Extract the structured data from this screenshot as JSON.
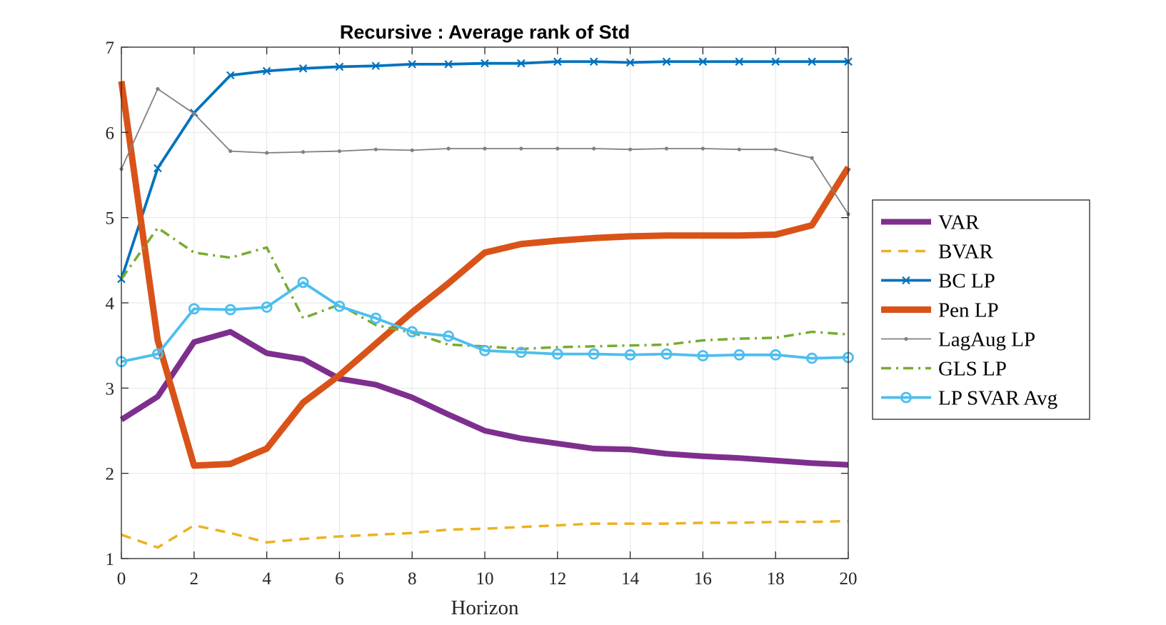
{
  "chart_data": {
    "type": "line",
    "title": "Recursive : Average rank of Std",
    "xlabel": "Horizon",
    "ylabel": "",
    "xlim": [
      0,
      20
    ],
    "ylim": [
      1,
      7
    ],
    "xticks": [
      "0",
      "2",
      "4",
      "6",
      "8",
      "10",
      "12",
      "14",
      "16",
      "18",
      "20"
    ],
    "yticks": [
      "1",
      "2",
      "3",
      "4",
      "5",
      "6",
      "7"
    ],
    "grid": true,
    "legend_position": "right",
    "x": [
      0,
      1,
      2,
      3,
      4,
      5,
      6,
      7,
      8,
      9,
      10,
      11,
      12,
      13,
      14,
      15,
      16,
      17,
      18,
      19,
      20
    ],
    "series": [
      {
        "name": "VAR",
        "color": "#7E2F8E",
        "style": "solid-thick",
        "marker": "none",
        "values": [
          2.63,
          2.9,
          3.54,
          3.66,
          3.41,
          3.34,
          3.11,
          3.04,
          2.89,
          2.69,
          2.5,
          2.41,
          2.35,
          2.29,
          2.28,
          2.23,
          2.2,
          2.18,
          2.15,
          2.12,
          2.1
        ]
      },
      {
        "name": "BVAR",
        "color": "#EDB120",
        "style": "dashed",
        "marker": "none",
        "values": [
          1.28,
          1.13,
          1.39,
          1.3,
          1.19,
          1.23,
          1.26,
          1.28,
          1.3,
          1.34,
          1.35,
          1.37,
          1.39,
          1.41,
          1.41,
          1.41,
          1.42,
          1.42,
          1.43,
          1.43,
          1.44
        ]
      },
      {
        "name": "BC LP",
        "color": "#0072BD",
        "style": "solid",
        "marker": "x",
        "values": [
          4.28,
          5.58,
          6.23,
          6.67,
          6.72,
          6.75,
          6.77,
          6.78,
          6.8,
          6.8,
          6.81,
          6.81,
          6.83,
          6.83,
          6.82,
          6.83,
          6.83,
          6.83,
          6.83,
          6.83,
          6.83
        ]
      },
      {
        "name": "Pen LP",
        "color": "#D95319",
        "style": "solid-heavy",
        "marker": "none",
        "values": [
          6.6,
          3.56,
          2.09,
          2.11,
          2.29,
          2.83,
          3.15,
          3.52,
          3.89,
          4.23,
          4.59,
          4.69,
          4.73,
          4.76,
          4.78,
          4.79,
          4.79,
          4.79,
          4.8,
          4.91,
          5.59
        ]
      },
      {
        "name": "LagAug LP",
        "color": "#808080",
        "style": "solid-thin",
        "marker": "dot",
        "values": [
          5.57,
          6.51,
          6.22,
          5.78,
          5.76,
          5.77,
          5.78,
          5.8,
          5.79,
          5.81,
          5.81,
          5.81,
          5.81,
          5.81,
          5.8,
          5.81,
          5.81,
          5.8,
          5.8,
          5.7,
          5.04
        ]
      },
      {
        "name": "GLS LP",
        "color": "#77AC30",
        "style": "dashdot",
        "marker": "none",
        "values": [
          4.28,
          4.88,
          4.59,
          4.53,
          4.65,
          3.82,
          3.98,
          3.74,
          3.65,
          3.51,
          3.49,
          3.46,
          3.48,
          3.49,
          3.5,
          3.51,
          3.56,
          3.58,
          3.59,
          3.66,
          3.63
        ]
      },
      {
        "name": "LP SVAR Avg",
        "color": "#4DBEEE",
        "style": "solid",
        "marker": "circle",
        "values": [
          3.31,
          3.4,
          3.93,
          3.92,
          3.95,
          4.24,
          3.96,
          3.82,
          3.66,
          3.61,
          3.44,
          3.42,
          3.4,
          3.4,
          3.39,
          3.4,
          3.38,
          3.39,
          3.39,
          3.35,
          3.36
        ]
      }
    ]
  }
}
